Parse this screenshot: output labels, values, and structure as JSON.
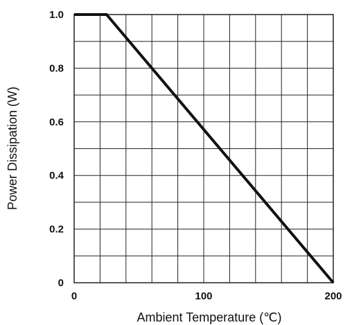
{
  "chart_data": {
    "type": "line",
    "title": "",
    "xlabel": "Ambient Temperature (℃)",
    "ylabel": "Power Dissipation (W)",
    "xlim": [
      0,
      200
    ],
    "ylim": [
      0,
      1.0
    ],
    "x_ticks": [
      0,
      100,
      200
    ],
    "x_tick_labels": [
      "0",
      "100",
      "200"
    ],
    "y_ticks": [
      0,
      0.2,
      0.4,
      0.6,
      0.8,
      1.0
    ],
    "y_tick_labels": [
      "0",
      "0.2",
      "0.4",
      "0.6",
      "0.8",
      "1.0"
    ],
    "grid": true,
    "x_grid_step": 20,
    "y_grid_step": 0.1,
    "series": [
      {
        "x": [
          0,
          25,
          200
        ],
        "y": [
          1.0,
          1.0,
          0
        ]
      }
    ],
    "line_color": "#111111",
    "grid_color": "#222222"
  }
}
